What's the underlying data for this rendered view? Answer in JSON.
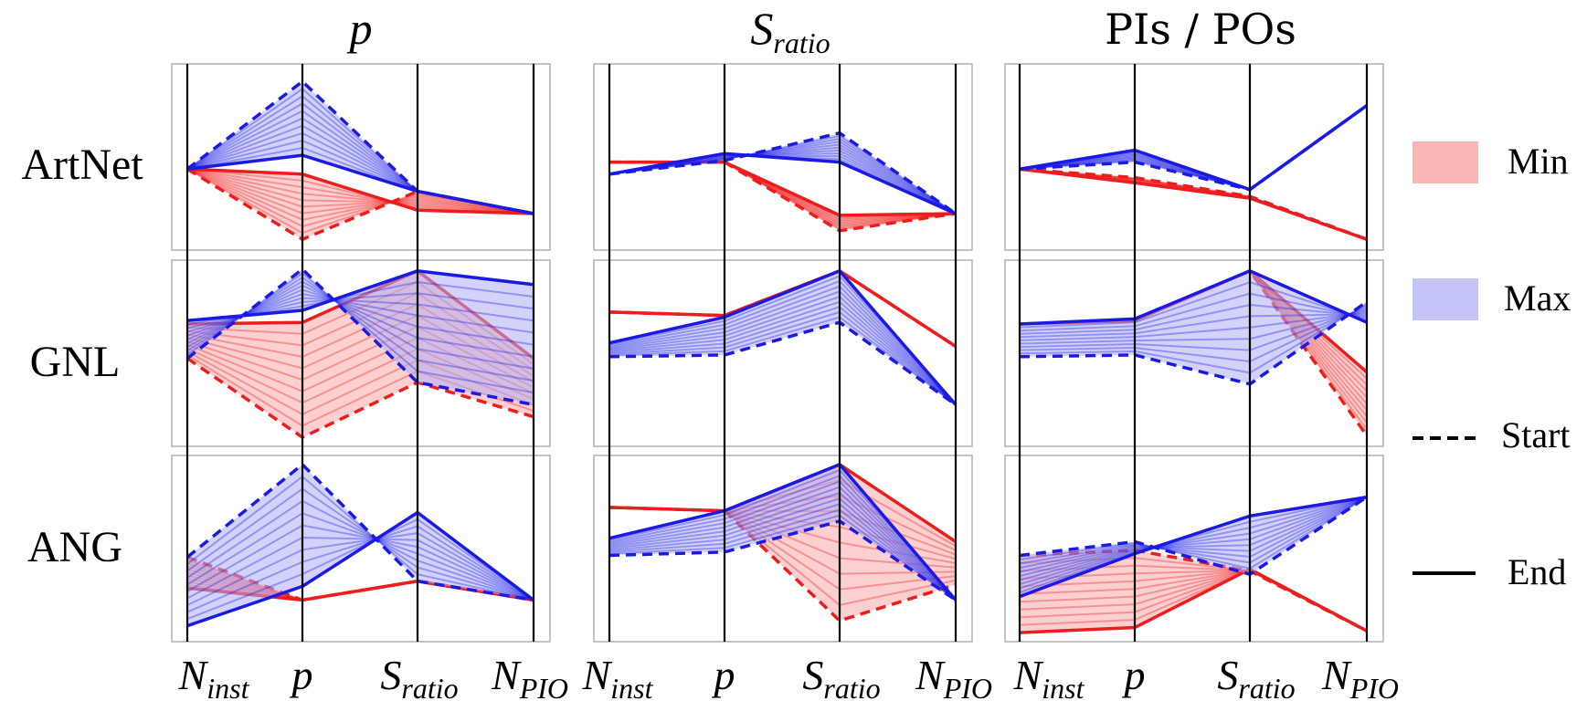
{
  "chart_data": {
    "type": "parallel_coordinates",
    "description_axes": [
      "N_inst",
      "p",
      "S_ratio",
      "N_PIO"
    ],
    "axis_labels": [
      {
        "main": "N",
        "sub": "inst"
      },
      {
        "main": "p",
        "sub": ""
      },
      {
        "main": "S",
        "sub": "ratio"
      },
      {
        "main": "N",
        "sub": "PIO"
      }
    ],
    "column_titles": [
      {
        "main": "p",
        "sub": "",
        "italic": true
      },
      {
        "main": "S",
        "sub": "ratio",
        "italic": true
      },
      {
        "main": "PIs / POs",
        "sub": "",
        "italic": false
      }
    ],
    "row_labels": [
      "ArtNet",
      "GNL",
      "ANG"
    ],
    "value_range": [
      0,
      1
    ],
    "legend": [
      {
        "label": "Min",
        "kind": "fill",
        "color": "#f08080"
      },
      {
        "label": "Max",
        "kind": "fill",
        "color": "#8c8cf0"
      },
      {
        "label": "Start",
        "kind": "dashed-line",
        "color": "#000000"
      },
      {
        "label": "End",
        "kind": "solid-line",
        "color": "#000000"
      }
    ],
    "colors": {
      "min": "#ee1c1c",
      "max": "#1a1ae6",
      "min_fill": "#f9a9a9",
      "max_fill": "#aeaef6"
    },
    "panels": [
      {
        "row": "ArtNet",
        "column": "p",
        "min_start": [
          0.43,
          0.02,
          0.3,
          0.17
        ],
        "min_end": [
          0.43,
          0.4,
          0.19,
          0.17
        ],
        "max_start": [
          0.43,
          0.94,
          0.3,
          0.17
        ],
        "max_end": [
          0.43,
          0.51,
          0.3,
          0.17
        ]
      },
      {
        "row": "ArtNet",
        "column": "S_ratio",
        "min_start": [
          0.47,
          0.47,
          0.07,
          0.17
        ],
        "min_end": [
          0.47,
          0.47,
          0.16,
          0.17
        ],
        "max_start": [
          0.4,
          0.48,
          0.64,
          0.17
        ],
        "max_end": [
          0.4,
          0.52,
          0.47,
          0.17
        ]
      },
      {
        "row": "ArtNet",
        "column": "PIs / POs",
        "min_start": [
          0.43,
          0.38,
          0.27,
          0.02
        ],
        "min_end": [
          0.43,
          0.35,
          0.26,
          0.02
        ],
        "max_start": [
          0.43,
          0.47,
          0.31,
          0.8
        ],
        "max_end": [
          0.43,
          0.54,
          0.31,
          0.8
        ]
      },
      {
        "row": "GNL",
        "column": "p",
        "min_start": [
          0.47,
          0.01,
          0.33,
          0.13
        ],
        "min_end": [
          0.67,
          0.68,
          0.98,
          0.47
        ],
        "max_start": [
          0.47,
          0.99,
          0.33,
          0.2
        ],
        "max_end": [
          0.69,
          0.75,
          0.98,
          0.9
        ]
      },
      {
        "row": "GNL",
        "column": "S_ratio",
        "min_start": [
          0.74,
          0.72,
          0.98,
          0.54
        ],
        "min_end": [
          0.74,
          0.72,
          0.98,
          0.54
        ],
        "max_start": [
          0.48,
          0.49,
          0.68,
          0.2
        ],
        "max_end": [
          0.56,
          0.71,
          0.98,
          0.2
        ]
      },
      {
        "row": "GNL",
        "column": "PIs / POs",
        "min_start": [
          0.67,
          0.69,
          0.98,
          0.02
        ],
        "min_end": [
          0.67,
          0.69,
          0.98,
          0.39
        ],
        "max_start": [
          0.48,
          0.49,
          0.32,
          0.8
        ],
        "max_end": [
          0.67,
          0.7,
          0.98,
          0.68
        ]
      },
      {
        "row": "ANG",
        "column": "p",
        "min_start": [
          0.45,
          0.2,
          0.31,
          0.2
        ],
        "min_end": [
          0.27,
          0.2,
          0.31,
          0.2
        ],
        "max_start": [
          0.45,
          0.99,
          0.31,
          0.2
        ],
        "max_end": [
          0.05,
          0.28,
          0.71,
          0.2
        ]
      },
      {
        "row": "ANG",
        "column": "S_ratio",
        "min_start": [
          0.74,
          0.72,
          0.08,
          0.29
        ],
        "min_end": [
          0.74,
          0.72,
          0.99,
          0.54
        ],
        "max_start": [
          0.46,
          0.48,
          0.66,
          0.2
        ],
        "max_end": [
          0.56,
          0.72,
          0.99,
          0.2
        ]
      },
      {
        "row": "ANG",
        "column": "PIs / POs",
        "min_start": [
          0.46,
          0.49,
          0.37,
          0.02
        ],
        "min_end": [
          0.01,
          0.04,
          0.38,
          0.02
        ],
        "max_start": [
          0.46,
          0.54,
          0.35,
          0.8
        ],
        "max_end": [
          0.22,
          0.47,
          0.69,
          0.8
        ]
      }
    ]
  }
}
